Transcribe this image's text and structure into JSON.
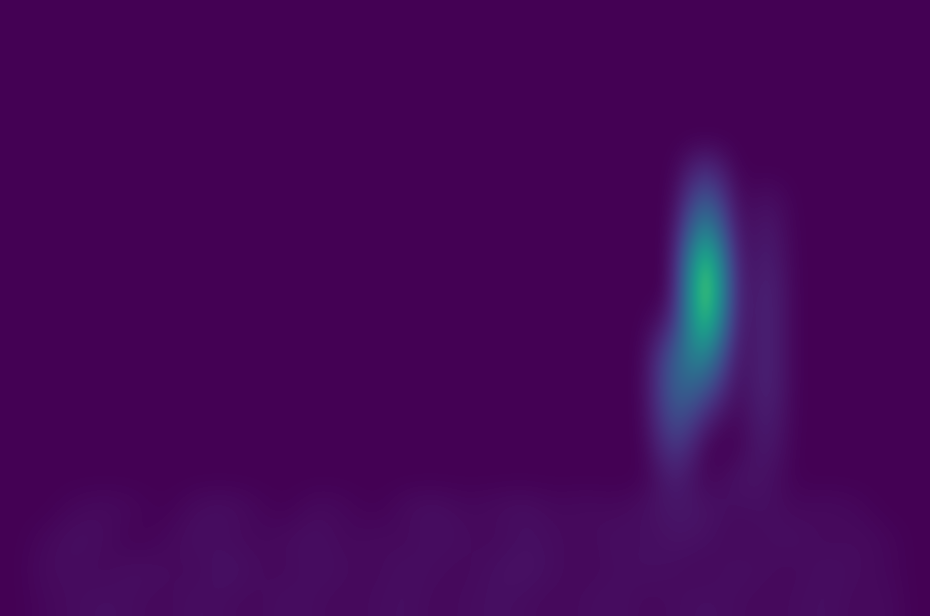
{
  "chart_data": {
    "type": "heatmap",
    "color": "viridis",
    "tick_labels": false,
    "cells": [
      [
        0,
        0,
        0,
        0,
        0,
        0,
        0,
        0,
        0,
        0,
        0,
        0,
        0,
        0,
        0,
        0,
        0,
        0,
        0,
        0,
        0,
        0,
        0,
        0,
        0,
        0,
        0,
        0,
        0,
        0,
        0
      ],
      [
        0,
        0,
        0,
        0,
        0,
        0,
        0,
        0,
        0,
        0,
        0,
        0,
        0,
        0,
        0,
        0,
        0,
        0,
        0,
        0,
        0,
        0,
        0,
        0,
        0,
        0,
        0,
        0,
        0,
        0,
        0
      ],
      [
        0,
        0,
        0,
        0,
        0,
        0,
        0,
        0,
        0,
        0,
        0,
        0,
        0,
        0,
        0,
        0,
        0,
        0,
        0,
        0,
        0,
        0,
        0,
        0,
        0,
        0,
        0,
        0,
        0,
        0,
        0
      ],
      [
        0,
        0,
        0,
        0,
        0,
        0,
        0,
        0,
        0,
        0,
        0,
        0,
        0,
        0,
        0,
        0,
        0,
        0,
        0,
        0,
        0,
        0,
        0,
        0,
        0,
        0,
        0,
        0,
        0,
        0,
        0
      ],
      [
        0,
        0,
        0,
        0,
        0,
        0,
        0,
        0,
        0,
        0,
        0,
        0,
        0,
        0,
        0,
        0,
        0,
        0,
        0,
        0,
        0,
        0,
        0,
        0,
        0,
        0,
        0,
        0,
        0,
        0,
        0
      ],
      [
        0,
        0,
        0,
        0,
        0,
        0,
        0,
        0,
        0,
        0,
        0,
        0,
        0,
        0,
        0,
        0,
        0,
        0,
        0,
        0,
        0,
        0,
        0,
        0.15,
        0,
        0,
        0,
        0,
        0,
        0,
        0
      ],
      [
        0,
        0,
        0,
        0,
        0,
        0,
        0,
        0,
        0,
        0,
        0,
        0,
        0,
        0,
        0,
        0,
        0,
        0,
        0,
        0,
        0,
        0,
        0,
        0.35,
        0,
        0.05,
        0,
        0,
        0,
        0,
        0
      ],
      [
        0,
        0,
        0,
        0,
        0,
        0,
        0,
        0,
        0,
        0,
        0,
        0,
        0,
        0,
        0,
        0,
        0,
        0,
        0,
        0,
        0,
        0,
        0,
        0.6,
        0,
        0.08,
        0,
        0,
        0,
        0,
        0
      ],
      [
        0,
        0,
        0,
        0,
        0,
        0,
        0,
        0,
        0,
        0,
        0,
        0,
        0,
        0,
        0,
        0,
        0,
        0,
        0,
        0,
        0,
        0,
        0,
        0.9,
        0,
        0.1,
        0,
        0,
        0,
        0,
        0
      ],
      [
        0,
        0,
        0,
        0,
        0,
        0,
        0,
        0,
        0,
        0,
        0,
        0,
        0,
        0,
        0,
        0,
        0,
        0,
        0,
        0,
        0,
        0,
        0,
        1.0,
        0,
        0.12,
        0,
        0,
        0,
        0,
        0
      ],
      [
        0,
        0,
        0,
        0,
        0,
        0,
        0,
        0,
        0,
        0,
        0,
        0,
        0,
        0,
        0,
        0,
        0,
        0,
        0,
        0,
        0,
        0,
        0.1,
        0.85,
        0,
        0.12,
        0,
        0,
        0,
        0,
        0
      ],
      [
        0,
        0,
        0,
        0,
        0,
        0,
        0,
        0,
        0,
        0,
        0,
        0,
        0,
        0,
        0,
        0,
        0,
        0,
        0,
        0,
        0,
        0,
        0.3,
        0.55,
        0,
        0.12,
        0,
        0,
        0,
        0,
        0
      ],
      [
        0,
        0,
        0,
        0,
        0,
        0,
        0,
        0,
        0,
        0,
        0,
        0,
        0,
        0,
        0,
        0,
        0,
        0,
        0,
        0,
        0,
        0,
        0.35,
        0.3,
        0,
        0.12,
        0,
        0,
        0,
        0,
        0
      ],
      [
        0,
        0,
        0,
        0,
        0,
        0,
        0,
        0,
        0,
        0,
        0,
        0,
        0,
        0,
        0,
        0,
        0,
        0,
        0,
        0,
        0,
        0,
        0.3,
        0.1,
        0,
        0.1,
        0,
        0,
        0,
        0,
        0
      ],
      [
        0,
        0,
        0,
        0,
        0,
        0,
        0,
        0,
        0,
        0,
        0,
        0,
        0,
        0,
        0,
        0,
        0,
        0,
        0,
        0,
        0,
        0,
        0.2,
        0,
        0,
        0.08,
        0,
        0,
        0,
        0,
        0
      ],
      [
        0,
        0,
        0,
        0,
        0,
        0,
        0,
        0,
        0,
        0,
        0,
        0,
        0,
        0,
        0,
        0,
        0,
        0,
        0,
        0,
        0,
        0,
        0.1,
        0,
        0.05,
        0.05,
        0,
        0,
        0,
        0,
        0
      ],
      [
        0,
        0,
        0.02,
        0.03,
        0.02,
        0,
        0.03,
        0.04,
        0.02,
        0,
        0.03,
        0.02,
        0,
        0.03,
        0.04,
        0.02,
        0.03,
        0.04,
        0.02,
        0.03,
        0.02,
        0.04,
        0.06,
        0.05,
        0.03,
        0.04,
        0.02,
        0.03,
        0.02,
        0,
        0
      ],
      [
        0,
        0.02,
        0.04,
        0.03,
        0,
        0.02,
        0.04,
        0.03,
        0.02,
        0.03,
        0.04,
        0.02,
        0.03,
        0.02,
        0.04,
        0.03,
        0.02,
        0.04,
        0.03,
        0.02,
        0.04,
        0.03,
        0.05,
        0.04,
        0.02,
        0.03,
        0.04,
        0.02,
        0.03,
        0.02,
        0
      ],
      [
        0,
        0.03,
        0.03,
        0.02,
        0.04,
        0.03,
        0.02,
        0.05,
        0.03,
        0.02,
        0.04,
        0.03,
        0.02,
        0.04,
        0.03,
        0.02,
        0.04,
        0.05,
        0.03,
        0.02,
        0.03,
        0.04,
        0.03,
        0.02,
        0.04,
        0.03,
        0.02,
        0.04,
        0.03,
        0.02,
        0
      ],
      [
        0,
        0.02,
        0.03,
        0.04,
        0.03,
        0.02,
        0.04,
        0.03,
        0.02,
        0.04,
        0.03,
        0.02,
        0.03,
        0.04,
        0.02,
        0.03,
        0.04,
        0.03,
        0.02,
        0.03,
        0.04,
        0.02,
        0.03,
        0.04,
        0.03,
        0.02,
        0.03,
        0.04,
        0.02,
        0.03,
        0
      ]
    ]
  }
}
